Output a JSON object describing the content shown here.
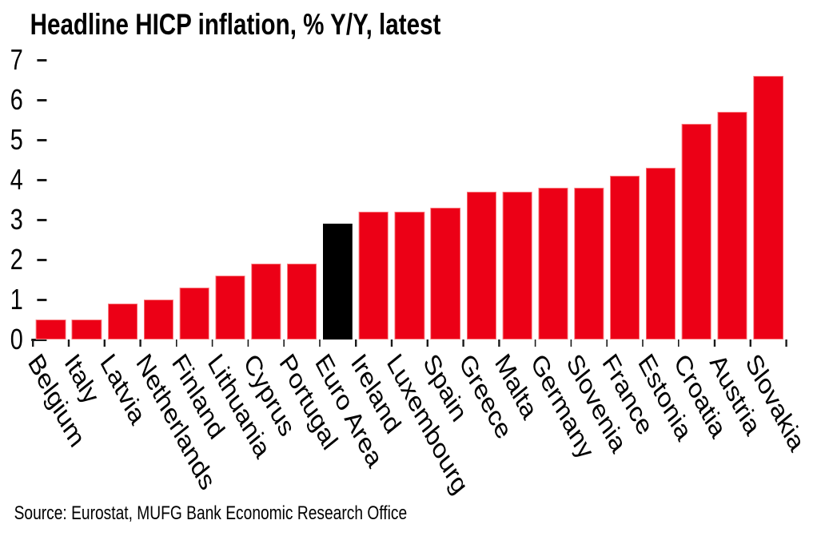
{
  "chart_data": {
    "type": "bar",
    "title": "Headline HICP inflation, % Y/Y, latest",
    "categories": [
      "Belgium",
      "Italy",
      "Latvia",
      "Netherlands",
      "Finland",
      "Lithuania",
      "Cyprus",
      "Portugal",
      "Euro Area",
      "Ireland",
      "Luxembourg",
      "Spain",
      "Greece",
      "Malta",
      "Germany",
      "Slovenia",
      "France",
      "Estonia",
      "Croatia",
      "Austria",
      "Slovakia"
    ],
    "values": [
      0.5,
      0.5,
      0.9,
      1.0,
      1.3,
      1.6,
      1.9,
      1.9,
      2.9,
      3.2,
      3.2,
      3.3,
      3.7,
      3.7,
      3.8,
      3.8,
      4.1,
      4.3,
      5.4,
      5.7,
      6.6
    ],
    "highlight_category": "Euro Area",
    "unit": "%",
    "xlabel": "",
    "ylabel": "",
    "ylim": [
      0,
      7
    ],
    "yticks": [
      0,
      1,
      2,
      3,
      4,
      5,
      6,
      7
    ],
    "grid": false,
    "legend": "none",
    "bar_color": "#EC0016",
    "highlight_color": "#000000",
    "text_color": "#000000",
    "source_note": "Source: Eurostat, MUFG Bank Economic Research Office"
  }
}
